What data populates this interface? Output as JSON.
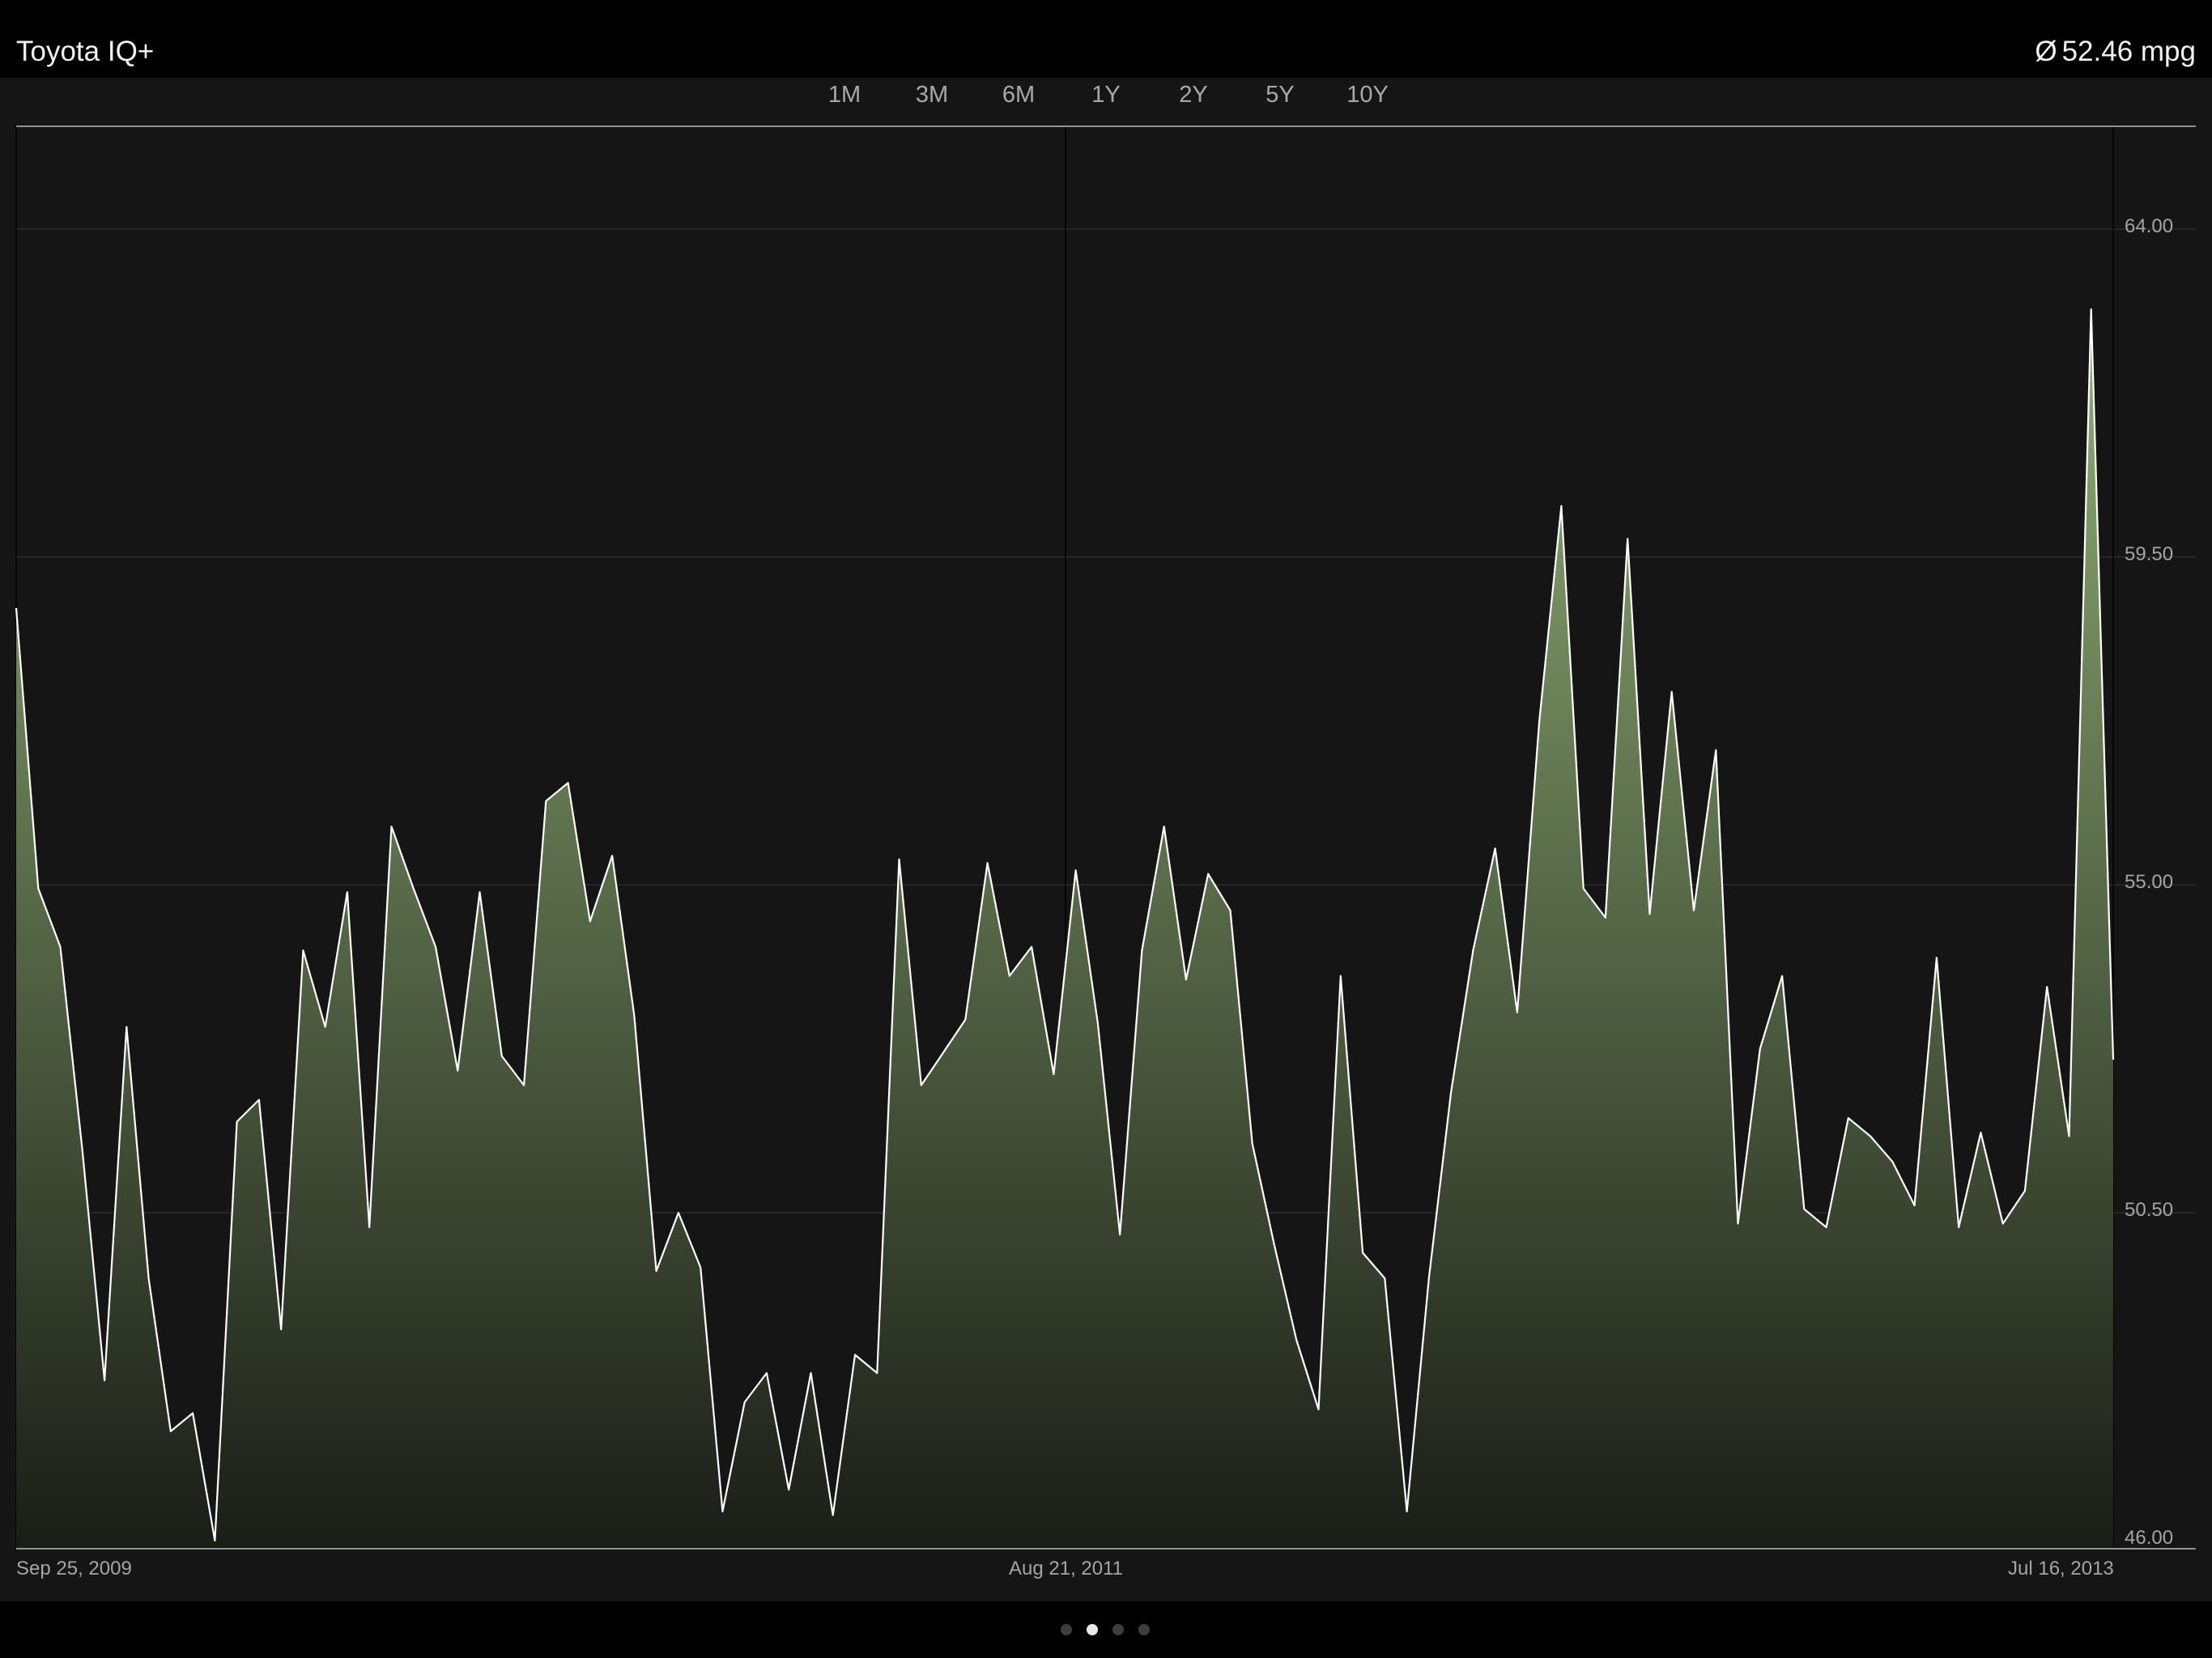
{
  "header": {
    "title": "Toyota IQ+",
    "average_symbol": "Ø",
    "average_value": "52.46 mpg"
  },
  "ranges": [
    {
      "label": "1M",
      "active": false
    },
    {
      "label": "3M",
      "active": false
    },
    {
      "label": "6M",
      "active": false
    },
    {
      "label": "1Y",
      "active": false
    },
    {
      "label": "2Y",
      "active": false
    },
    {
      "label": "5Y",
      "active": true
    },
    {
      "label": "10Y",
      "active": false
    }
  ],
  "page_dots": {
    "count": 4,
    "active_index": 1
  },
  "colors": {
    "line": "#ffffff",
    "fill_top": "#8fae74",
    "fill_bottom": "#1a1d17",
    "grid": "#2c2c2c",
    "axis": "#bdbdbd",
    "background": "#151515"
  },
  "chart_data": {
    "type": "area",
    "title": "",
    "xlabel": "",
    "ylabel": "",
    "ylim": [
      46.0,
      65.5
    ],
    "y_ticks": [
      "64.00",
      "59.50",
      "55.00",
      "50.50",
      "46.00"
    ],
    "x_ticks": [
      "Sep 25, 2009",
      "Aug 21, 2011",
      "Jul 16, 2013"
    ],
    "grid": true,
    "series": [
      {
        "values": [
          58.8,
          54.95,
          54.15,
          51.35,
          48.2,
          53.05,
          49.6,
          47.5,
          47.75,
          46.0,
          51.75,
          52.05,
          48.9,
          54.1,
          53.05,
          54.9,
          50.3,
          55.8,
          54.95,
          54.15,
          52.45,
          54.9,
          52.65,
          52.25,
          56.15,
          56.4,
          54.5,
          55.4,
          53.2,
          49.7,
          50.5,
          49.75,
          46.4,
          47.9,
          48.3,
          46.7,
          48.3,
          46.35,
          48.55,
          48.3,
          55.35,
          52.25,
          52.7,
          53.15,
          55.3,
          53.75,
          54.15,
          52.4,
          55.2,
          53.1,
          50.2,
          54.1,
          55.8,
          53.7,
          55.15,
          54.65,
          51.45,
          50.05,
          48.75,
          47.8,
          53.75,
          49.95,
          49.6,
          46.4,
          49.6,
          52.15,
          54.1,
          55.5,
          53.25,
          57.25,
          60.2,
          54.95,
          54.55,
          59.75,
          54.6,
          57.65,
          54.65,
          56.85,
          50.35,
          52.75,
          53.75,
          50.55,
          50.3,
          51.8,
          51.55,
          51.2,
          50.6,
          54.0,
          50.3,
          51.6,
          50.35,
          50.8,
          53.6,
          51.55,
          62.9,
          52.6
        ]
      }
    ]
  }
}
